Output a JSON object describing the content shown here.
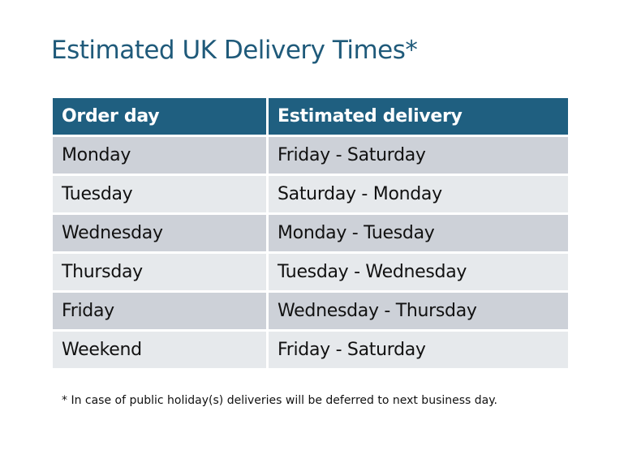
{
  "title": "Estimated UK Delivery Times*",
  "table": {
    "headers": [
      "Order day",
      "Estimated delivery"
    ],
    "rows": [
      [
        "Monday",
        "Friday - Saturday"
      ],
      [
        "Tuesday",
        "Saturday - Monday"
      ],
      [
        "Wednesday",
        "Monday - Tuesday"
      ],
      [
        "Thursday",
        "Tuesday - Wednesday"
      ],
      [
        "Friday",
        "Wednesday - Thursday"
      ],
      [
        "Weekend",
        "Friday - Saturday"
      ]
    ]
  },
  "footnote": "* In case of public holiday(s) deliveries will be deferred to next business day.",
  "colors": {
    "header": "#1f5f80",
    "title": "#1f5a7a",
    "row_odd": "#cdd1d8",
    "row_even": "#e6e9ec"
  }
}
